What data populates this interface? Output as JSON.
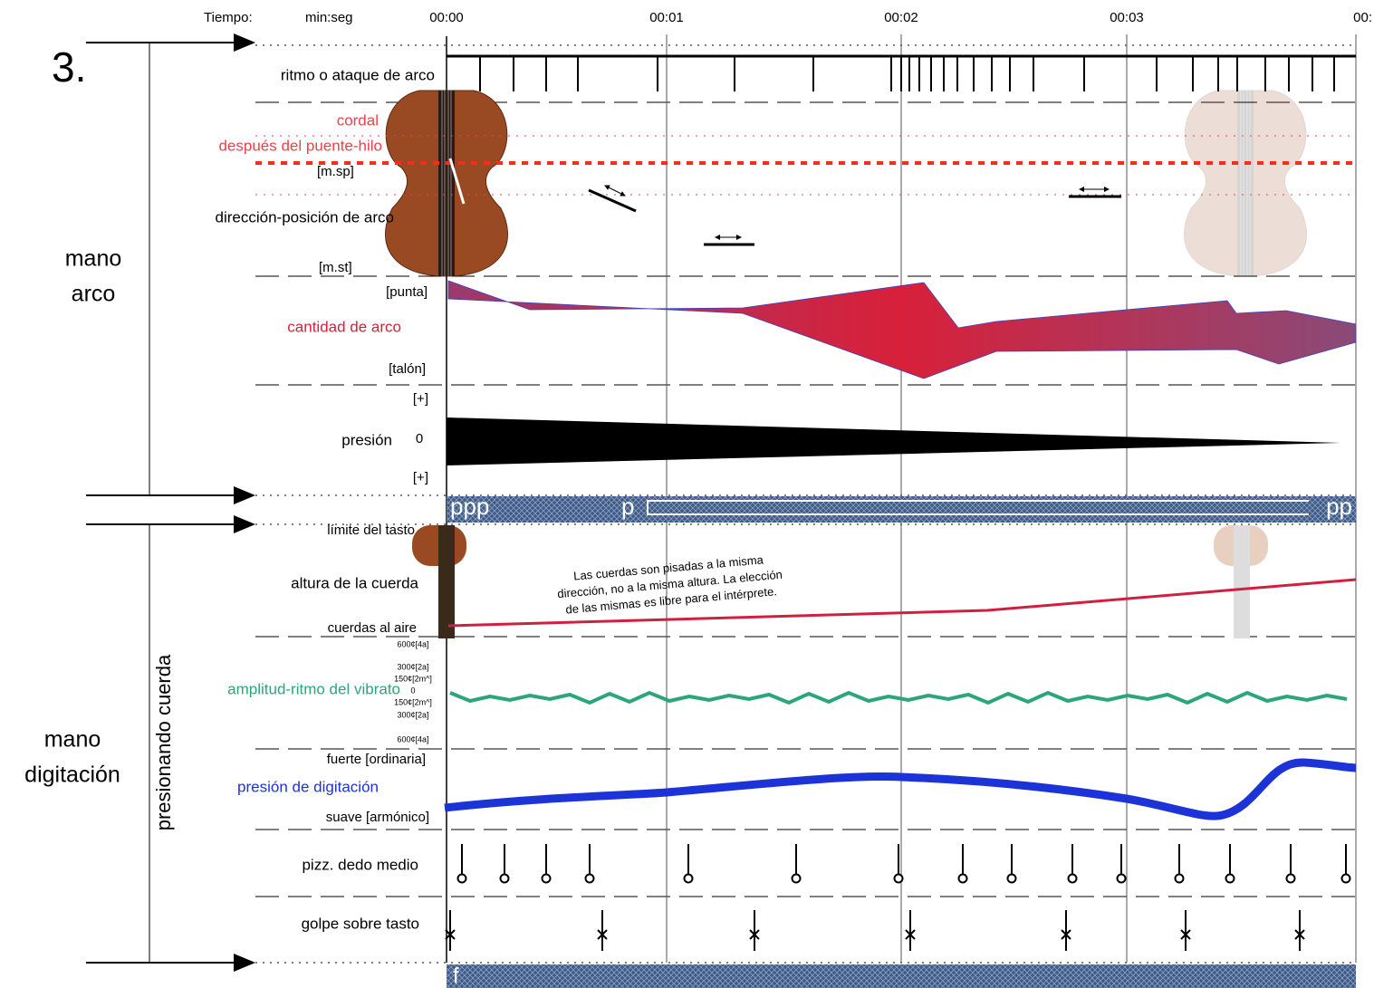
{
  "header": {
    "tiempo": "Tiempo:",
    "unit": "min:seg",
    "section_number": "3."
  },
  "timeline": {
    "ticks": [
      "00:00",
      "00:01",
      "00:02",
      "00:03",
      "00:"
    ]
  },
  "groups": [
    {
      "lines": [
        "mano",
        "arco"
      ]
    },
    {
      "lines": [
        "mano",
        "digitación"
      ],
      "sublabel": "presionando cuerda"
    }
  ],
  "bow": {
    "rhythm": "ritmo o ataque de arco",
    "cordal": "cordal",
    "after_bridge": "después del puente-hilo",
    "msp": "[m.sp]",
    "direction": "dirección-posición de arco",
    "mst": "[m.st]",
    "tip": "[punta]",
    "amount": "cantidad de arco",
    "frog": "[talón]",
    "plus_top": "[+]",
    "pressure": "presión",
    "zero": "0",
    "plus_bottom": "[+]"
  },
  "dynamics_top": [
    "ppp",
    "p",
    "pp"
  ],
  "finger": {
    "fingerboard_limit": "límite del tasto",
    "string_height": "altura de la cuerda",
    "note": [
      "Las cuerdas son pisadas a la misma",
      "dirección, no a la misma altura. La elección",
      "de las mismas es libre para el intérprete."
    ],
    "open_strings": "cuerdas al aire",
    "vibrato_scale": [
      "600¢[4a]",
      "300¢[2a]",
      "150¢[2m^]",
      "0",
      "150¢[2m^]",
      "300¢[2a]",
      "600¢[4a]"
    ],
    "vibrato": "amplitud-ritmo del vibrato",
    "strong": "fuerte [ordinaria]",
    "finger_pressure": "presión de digitación",
    "soft": "suave [armónico]",
    "pizz": "pizz. dedo medio",
    "tap": "golpe sobre tasto"
  },
  "dynamics_bottom": "f"
}
